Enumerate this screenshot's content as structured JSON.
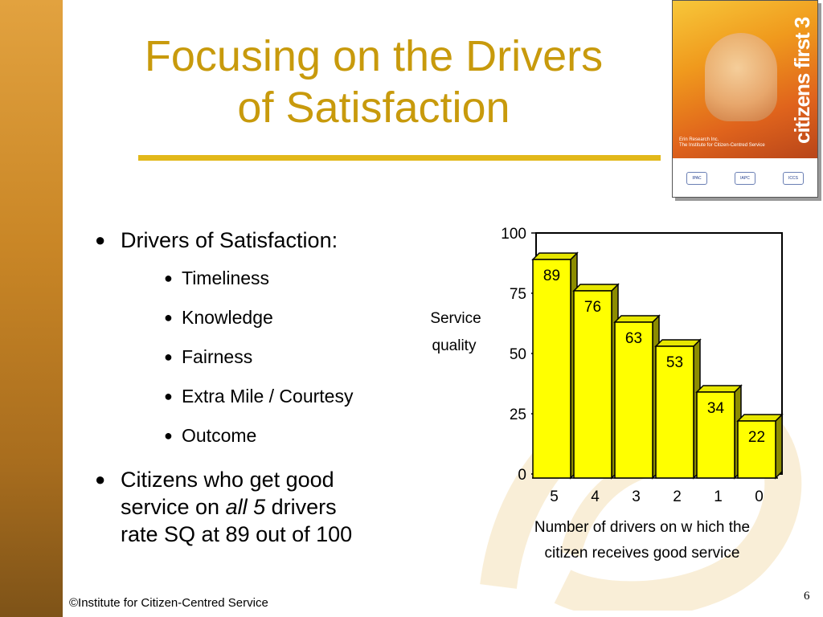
{
  "slide": {
    "title_line1": "Focusing on the Drivers",
    "title_line2": "of Satisfaction",
    "footer": "©Institute for Citizen-Centred Service",
    "page_number": "6"
  },
  "cover": {
    "brand": "citizens first 3",
    "small_text_1": "Erin Research Inc.",
    "small_text_2": "The Institute for Citizen-Centred Service",
    "logos": [
      "IPAC",
      "IAPC",
      "ICCS"
    ]
  },
  "bullets": {
    "b1_text": "Drivers of Satisfaction:",
    "sub_items": [
      "Timeliness",
      "Knowledge",
      "Fairness",
      "Extra Mile / Courtesy",
      "Outcome"
    ],
    "b2_part1": "Citizens who get good",
    "b2_part2_pre": "service on ",
    "b2_part2_em": "all 5",
    "b2_part2_post": " drivers",
    "b2_part3": "rate SQ at 89 out of 100"
  },
  "colors": {
    "title": "#c89a0c",
    "rule": "#e2b81a",
    "bar_front": "#ffff00",
    "bar_top": "#e6e600",
    "bar_side": "#8c8c00"
  },
  "chart_data": {
    "type": "bar",
    "categories": [
      "5",
      "4",
      "3",
      "2",
      "1",
      "0"
    ],
    "values": [
      89,
      76,
      63,
      53,
      34,
      22
    ],
    "ylim": [
      0,
      100
    ],
    "yticks": [
      0,
      25,
      50,
      75,
      100
    ],
    "ylabel_line1": "Service",
    "ylabel_line2": "quality",
    "xlabel_line1": "Number of drivers on w hich the",
    "xlabel_line2": "citizen receives good service",
    "grid": false
  }
}
